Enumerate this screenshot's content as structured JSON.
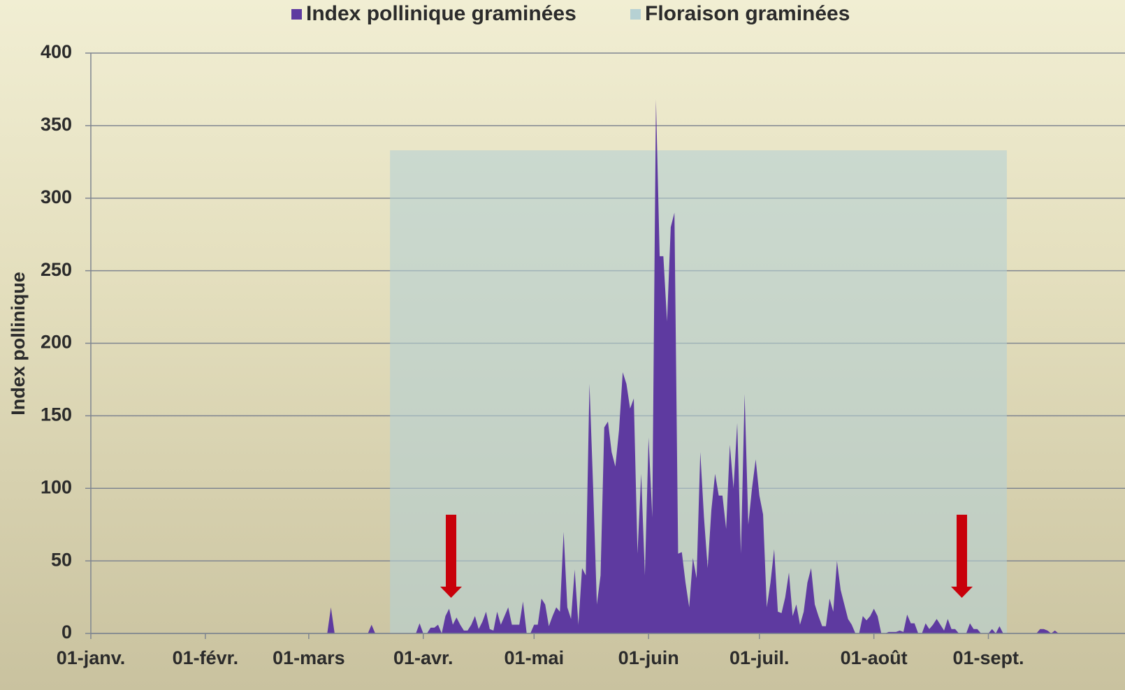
{
  "chart_data": {
    "type": "area",
    "y_label": "Index pollinique",
    "xlim": [
      0,
      280
    ],
    "ylim": [
      0,
      400
    ],
    "yticks": [
      0,
      50,
      100,
      150,
      200,
      250,
      300,
      350,
      400
    ],
    "xticks": [
      {
        "value": 0,
        "label": "01-janv."
      },
      {
        "value": 31,
        "label": "01-févr."
      },
      {
        "value": 59,
        "label": "01-mars"
      },
      {
        "value": 90,
        "label": "01-avr."
      },
      {
        "value": 120,
        "label": "01-mai"
      },
      {
        "value": 151,
        "label": "01-juin"
      },
      {
        "value": 181,
        "label": "01-juil."
      },
      {
        "value": 212,
        "label": "01-août"
      },
      {
        "value": 243,
        "label": "01-sept."
      }
    ],
    "grid": true,
    "legend": "top",
    "series": [
      {
        "name": "Index pollinique graminées",
        "color": "#5e3aa0",
        "x": [
          64,
          65,
          66,
          67,
          68,
          69,
          70,
          71,
          72,
          73,
          74,
          75,
          76,
          77,
          78,
          79,
          80,
          81,
          82,
          83,
          84,
          85,
          86,
          87,
          88,
          89,
          90,
          91,
          92,
          93,
          94,
          95,
          96,
          97,
          98,
          99,
          100,
          101,
          102,
          103,
          104,
          105,
          106,
          107,
          108,
          109,
          110,
          111,
          112,
          113,
          114,
          115,
          116,
          117,
          118,
          119,
          120,
          121,
          122,
          123,
          124,
          125,
          126,
          127,
          128,
          129,
          130,
          131,
          132,
          133,
          134,
          135,
          136,
          137,
          138,
          139,
          140,
          141,
          142,
          143,
          144,
          145,
          146,
          147,
          148,
          149,
          150,
          151,
          152,
          153,
          154,
          155,
          156,
          157,
          158,
          159,
          160,
          161,
          162,
          163,
          164,
          165,
          166,
          167,
          168,
          169,
          170,
          171,
          172,
          173,
          174,
          175,
          176,
          177,
          178,
          179,
          180,
          181,
          182,
          183,
          184,
          185,
          186,
          187,
          188,
          189,
          190,
          191,
          192,
          193,
          194,
          195,
          196,
          197,
          198,
          199,
          200,
          201,
          202,
          203,
          204,
          205,
          206,
          207,
          208,
          209,
          210,
          211,
          212,
          213,
          214,
          215,
          216,
          217,
          218,
          219,
          220,
          221,
          222,
          223,
          224,
          225,
          226,
          227,
          228,
          229,
          230,
          231,
          232,
          233,
          234,
          235,
          236,
          237,
          238,
          239,
          240,
          241,
          242,
          243,
          244,
          245,
          246,
          247,
          248,
          249,
          250,
          251,
          252,
          253,
          254,
          255,
          256,
          257,
          258,
          259,
          260,
          261,
          262
        ],
        "values": [
          0,
          18,
          0,
          0,
          0,
          0,
          0,
          0,
          0,
          0,
          0,
          0,
          6,
          0,
          0,
          0,
          0,
          0,
          0,
          0,
          0,
          0,
          0,
          0,
          0,
          7,
          0,
          0,
          4,
          4,
          6,
          0,
          12,
          17,
          6,
          11,
          6,
          2,
          2,
          6,
          12,
          3,
          8,
          15,
          3,
          2,
          15,
          6,
          12,
          18,
          6,
          6,
          6,
          22,
          0,
          0,
          6,
          6,
          24,
          20,
          5,
          12,
          18,
          15,
          70,
          18,
          10,
          44,
          6,
          45,
          40,
          172,
          100,
          20,
          40,
          142,
          146,
          125,
          115,
          140,
          180,
          172,
          155,
          162,
          55,
          110,
          40,
          135,
          80,
          368,
          260,
          260,
          215,
          280,
          290,
          55,
          56,
          35,
          18,
          52,
          38,
          125,
          80,
          45,
          85,
          110,
          95,
          95,
          72,
          130,
          100,
          145,
          55,
          165,
          75,
          100,
          120,
          95,
          82,
          18,
          35,
          58,
          15,
          14,
          25,
          42,
          12,
          20,
          6,
          15,
          35,
          45,
          20,
          12,
          5,
          5,
          24,
          15,
          50,
          30,
          20,
          10,
          6,
          0,
          0,
          12,
          9,
          12,
          17,
          12,
          0,
          0,
          1,
          1,
          1,
          2,
          1,
          13,
          7,
          7,
          0,
          0,
          7,
          3,
          6,
          10,
          6,
          2,
          10,
          3,
          3,
          0,
          0,
          0,
          7,
          3,
          3,
          0,
          0,
          0,
          3,
          0,
          5,
          0,
          0,
          0,
          0,
          0,
          0,
          0,
          0,
          0,
          0,
          3,
          3,
          2,
          0,
          2,
          0
        ]
      },
      {
        "name": "Floraison graminées",
        "color": "#b6d1d3",
        "x": [
          81,
          248
        ],
        "values": [
          333,
          333
        ]
      }
    ]
  }
}
